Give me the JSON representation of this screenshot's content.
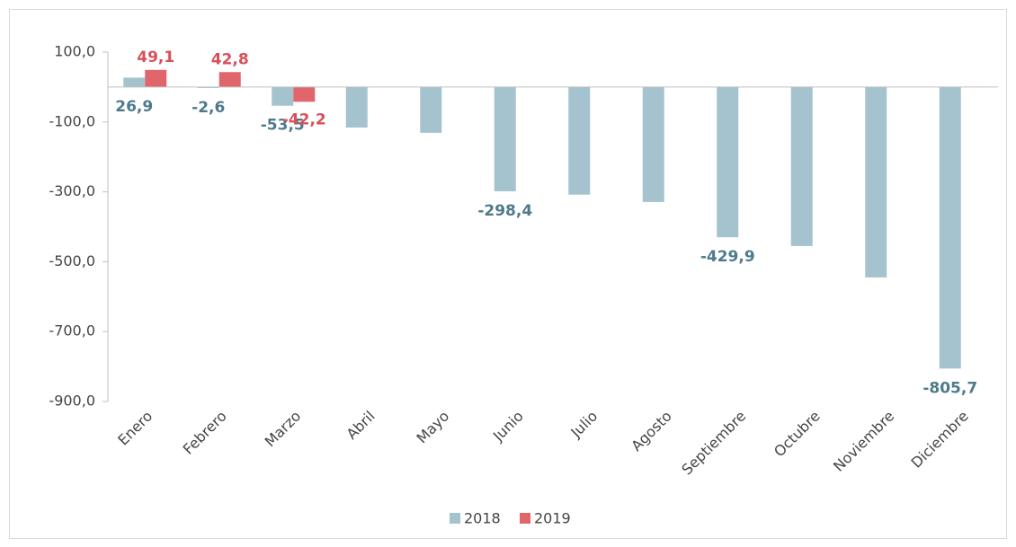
{
  "chart_data": {
    "type": "bar",
    "categories": [
      "Enero",
      "Febrero",
      "Marzo",
      "Abril",
      "Mayo",
      "Junio",
      "Julio",
      "Agosto",
      "Septiembre",
      "Octubre",
      "Noviembre",
      "Diciembre"
    ],
    "series": [
      {
        "name": "2018",
        "color": "#a5c3cf",
        "label_color": "#4e7a8c",
        "values": [
          26.9,
          -2.6,
          -53.5,
          -116,
          -131,
          -298.4,
          -308,
          -329,
          -429.9,
          -455,
          -545,
          -805.7
        ],
        "value_labels": [
          "26,9",
          "-2,6",
          "-53,5",
          null,
          null,
          "-298,4",
          null,
          null,
          "-429,9",
          null,
          null,
          "-805,7"
        ]
      },
      {
        "name": "2019",
        "color": "#e0666c",
        "label_color": "#d9505a",
        "values": [
          49.1,
          42.8,
          -42.2,
          null,
          null,
          null,
          null,
          null,
          null,
          null,
          null,
          null
        ],
        "value_labels": [
          "49,1",
          "42,8",
          "-42,2",
          null,
          null,
          null,
          null,
          null,
          null,
          null,
          null,
          null
        ]
      }
    ],
    "ylim": [
      -900,
      100
    ],
    "yticks": [
      {
        "value": 100,
        "label": "100,0"
      },
      {
        "value": -100,
        "label": "-100,0"
      },
      {
        "value": -300,
        "label": "-300,0"
      },
      {
        "value": -500,
        "label": "-500,0"
      },
      {
        "value": -700,
        "label": "-700,0"
      },
      {
        "value": -900,
        "label": "-900,0"
      }
    ],
    "grid": false,
    "legend": "bottom"
  }
}
